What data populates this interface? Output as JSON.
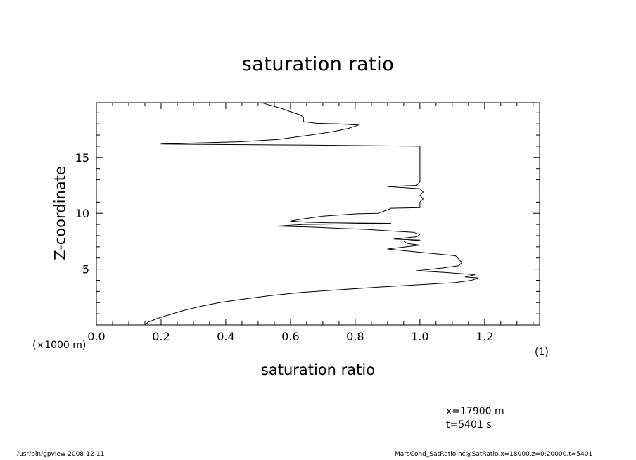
{
  "chart_data": {
    "type": "line",
    "title": "saturation ratio",
    "xlabel": "saturation ratio",
    "ylabel": "Z-coordinate",
    "x_unit": "(1)",
    "y_unit": "(×1000 m)",
    "xlim": [
      0.0,
      1.37
    ],
    "ylim": [
      0,
      19.9
    ],
    "x_ticks": [
      "0.0",
      "0.2",
      "0.4",
      "0.6",
      "0.8",
      "1.0",
      "1.2"
    ],
    "y_ticks": [
      "5",
      "10",
      "15"
    ],
    "grid": false,
    "legend": "none",
    "series": [
      {
        "color": "#000000",
        "points": [
          [
            0.15,
            0.0
          ],
          [
            0.16,
            0.25
          ],
          [
            0.19,
            0.6
          ],
          [
            0.23,
            0.95
          ],
          [
            0.27,
            1.3
          ],
          [
            0.32,
            1.65
          ],
          [
            0.38,
            2.0
          ],
          [
            0.45,
            2.3
          ],
          [
            0.53,
            2.6
          ],
          [
            0.63,
            2.9
          ],
          [
            0.75,
            3.15
          ],
          [
            0.88,
            3.4
          ],
          [
            1.0,
            3.6
          ],
          [
            1.11,
            3.8
          ],
          [
            1.16,
            4.0
          ],
          [
            1.18,
            4.2
          ],
          [
            1.14,
            4.3
          ],
          [
            1.17,
            4.5
          ],
          [
            1.08,
            4.7
          ],
          [
            0.99,
            4.85
          ],
          [
            1.07,
            5.1
          ],
          [
            1.12,
            5.3
          ],
          [
            1.13,
            5.6
          ],
          [
            1.12,
            5.9
          ],
          [
            1.11,
            6.2
          ],
          [
            1.04,
            6.4
          ],
          [
            0.97,
            6.6
          ],
          [
            0.9,
            6.8
          ],
          [
            0.96,
            7.0
          ],
          [
            1.0,
            7.15
          ],
          [
            0.96,
            7.3
          ],
          [
            0.95,
            7.5
          ],
          [
            1.0,
            7.6
          ],
          [
            0.92,
            7.7
          ],
          [
            0.99,
            7.9
          ],
          [
            1.0,
            8.1
          ],
          [
            0.98,
            8.3
          ],
          [
            0.89,
            8.45
          ],
          [
            0.84,
            8.55
          ],
          [
            0.75,
            8.65
          ],
          [
            0.68,
            8.75
          ],
          [
            0.56,
            8.85
          ],
          [
            0.64,
            9.0
          ],
          [
            0.91,
            9.1
          ],
          [
            0.72,
            9.15
          ],
          [
            0.65,
            9.2
          ],
          [
            0.6,
            9.3
          ],
          [
            0.64,
            9.5
          ],
          [
            0.7,
            9.75
          ],
          [
            0.8,
            9.95
          ],
          [
            0.87,
            10.0
          ],
          [
            0.89,
            10.2
          ],
          [
            0.9,
            10.3
          ],
          [
            0.91,
            10.45
          ],
          [
            1.0,
            10.5
          ],
          [
            1.0,
            11.0
          ],
          [
            1.01,
            11.3
          ],
          [
            1.0,
            11.6
          ],
          [
            1.01,
            11.9
          ],
          [
            1.0,
            12.2
          ],
          [
            0.9,
            12.4
          ],
          [
            0.99,
            12.5
          ],
          [
            1.0,
            12.8
          ],
          [
            1.0,
            13.5
          ],
          [
            1.0,
            14.5
          ],
          [
            1.0,
            15.5
          ],
          [
            1.0,
            16.0
          ],
          [
            0.66,
            16.1
          ],
          [
            0.2,
            16.2
          ],
          [
            0.31,
            16.3
          ],
          [
            0.44,
            16.4
          ],
          [
            0.56,
            16.6
          ],
          [
            0.66,
            17.0
          ],
          [
            0.73,
            17.3
          ],
          [
            0.78,
            17.6
          ],
          [
            0.81,
            17.9
          ],
          [
            0.75,
            18.0
          ],
          [
            0.68,
            18.05
          ],
          [
            0.64,
            18.2
          ],
          [
            0.64,
            18.6
          ],
          [
            0.63,
            18.8
          ],
          [
            0.57,
            19.4
          ],
          [
            0.51,
            19.9
          ]
        ]
      }
    ]
  },
  "info": {
    "x_pos": "x=17900  m",
    "time": "t=5401  s"
  },
  "footer": {
    "left": "/usr/bin/gpview   2008-12-11",
    "right": "MarsCond_SatRatio.nc@SatRatio,x=18000,z=0:20000,t=5401"
  }
}
